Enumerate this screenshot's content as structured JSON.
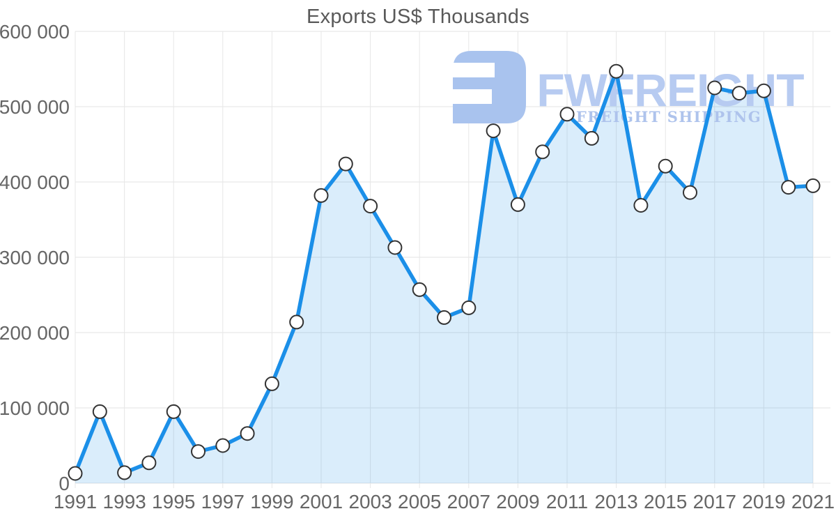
{
  "title": "Exports US$ Thousands",
  "watermark": {
    "brand": "FWFREIGHT",
    "tagline": "FREIGHT SHIPPING",
    "icon": "fwfreight-logo-icon",
    "color_icon": "#a9c3ee",
    "color_brand": "#b7cbf1",
    "color_tagline": "#aec3ec"
  },
  "colors": {
    "line": "#1b8fe8",
    "fill": "rgba(27,143,232,0.16)",
    "marker_fill": "#ffffff",
    "marker_stroke": "#333333",
    "grid": "#e3e3e3",
    "grid_vertical": "#e7e7e7",
    "axis_text": "#666666",
    "title_text": "#595959"
  },
  "chart_data": {
    "type": "area",
    "title": "Exports US$ Thousands",
    "x": [
      1991,
      1992,
      1993,
      1994,
      1995,
      1996,
      1997,
      1998,
      1999,
      2000,
      2001,
      2002,
      2003,
      2004,
      2005,
      2006,
      2007,
      2008,
      2009,
      2010,
      2011,
      2012,
      2013,
      2014,
      2015,
      2016,
      2017,
      2018,
      2019,
      2020,
      2021
    ],
    "series": [
      {
        "name": "Exports US$ Thousands",
        "values": [
          13000,
          95000,
          14000,
          27000,
          95000,
          42000,
          50000,
          66000,
          132000,
          214000,
          382000,
          424000,
          368000,
          313000,
          257000,
          220000,
          233000,
          468000,
          370000,
          440000,
          490000,
          458000,
          547000,
          369000,
          421000,
          386000,
          525000,
          518000,
          521000,
          393000,
          395000
        ]
      }
    ],
    "xlabel": "",
    "ylabel": "",
    "ylim": [
      0,
      600000
    ],
    "ytick_step": 100000,
    "ytick_labels": [
      "0",
      "100 000",
      "200 000",
      "300 000",
      "400 000",
      "500 000",
      "600 000"
    ],
    "xtick_labels": [
      "1991",
      "1993",
      "1995",
      "1997",
      "1999",
      "2001",
      "2003",
      "2005",
      "2007",
      "2009",
      "2011",
      "2013",
      "2015",
      "2017",
      "2019",
      "2021"
    ],
    "grid": true,
    "legend": false,
    "marker": "circle"
  }
}
